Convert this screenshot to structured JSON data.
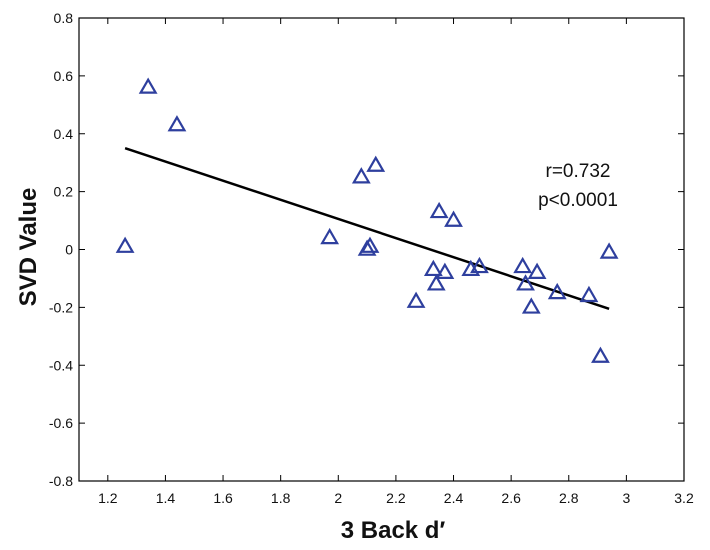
{
  "chart_data": {
    "type": "scatter",
    "title": "",
    "xlabel": "3 Back d′",
    "ylabel": "SVD Value",
    "xlim": [
      1.1,
      3.2
    ],
    "ylim": [
      -0.8,
      0.8
    ],
    "xticks": [
      1.2,
      1.4,
      1.6,
      1.8,
      2,
      2.2,
      2.4,
      2.6,
      2.8,
      3,
      3.2
    ],
    "yticks": [
      -0.8,
      -0.6,
      -0.4,
      -0.2,
      0,
      0.2,
      0.4,
      0.6,
      0.8
    ],
    "grid": false,
    "marker": "open-triangle",
    "marker_color": "#2e3f9e",
    "points": [
      {
        "x": 1.26,
        "y": 0.01
      },
      {
        "x": 1.34,
        "y": 0.56
      },
      {
        "x": 1.44,
        "y": 0.43
      },
      {
        "x": 1.97,
        "y": 0.04
      },
      {
        "x": 2.08,
        "y": 0.25
      },
      {
        "x": 2.1,
        "y": 0.0
      },
      {
        "x": 2.11,
        "y": 0.01
      },
      {
        "x": 2.13,
        "y": 0.29
      },
      {
        "x": 2.27,
        "y": -0.18
      },
      {
        "x": 2.33,
        "y": -0.07
      },
      {
        "x": 2.34,
        "y": -0.12
      },
      {
        "x": 2.35,
        "y": 0.13
      },
      {
        "x": 2.37,
        "y": -0.08
      },
      {
        "x": 2.4,
        "y": 0.1
      },
      {
        "x": 2.46,
        "y": -0.07
      },
      {
        "x": 2.49,
        "y": -0.06
      },
      {
        "x": 2.64,
        "y": -0.06
      },
      {
        "x": 2.65,
        "y": -0.12
      },
      {
        "x": 2.67,
        "y": -0.2
      },
      {
        "x": 2.69,
        "y": -0.08
      },
      {
        "x": 2.76,
        "y": -0.15
      },
      {
        "x": 2.87,
        "y": -0.16
      },
      {
        "x": 2.91,
        "y": -0.37
      },
      {
        "x": 2.94,
        "y": -0.01
      }
    ],
    "fit_line": {
      "x": [
        1.26,
        2.94
      ],
      "y": [
        0.35,
        -0.205
      ],
      "color": "#000000"
    },
    "annotations": [
      "r=0.732",
      "p<0.0001"
    ]
  }
}
